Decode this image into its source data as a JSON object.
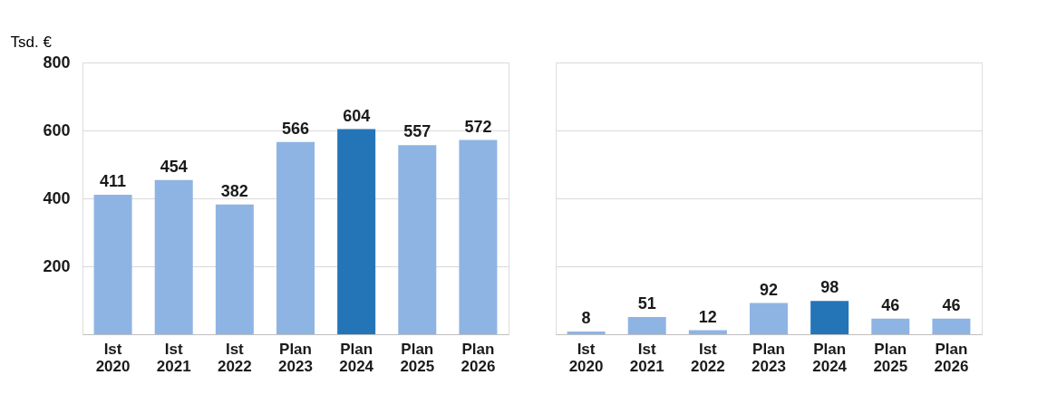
{
  "chart_data": [
    {
      "type": "bar",
      "ylabel": "Tsd. €",
      "categories": [
        "Ist 2020",
        "Ist 2021",
        "Ist 2022",
        "Plan 2023",
        "Plan 2024",
        "Plan 2025",
        "Plan 2026"
      ],
      "values": [
        411,
        454,
        382,
        566,
        604,
        557,
        572
      ],
      "colors": [
        "#8eb4e3",
        "#8eb4e3",
        "#8eb4e3",
        "#8eb4e3",
        "#2475b8",
        "#8eb4e3",
        "#8eb4e3"
      ],
      "ylim": [
        0,
        800
      ],
      "yticks": [
        {
          "value": 0,
          "label": null
        },
        200,
        400,
        600,
        800
      ],
      "grid": "y",
      "data_labels": true
    },
    {
      "type": "bar",
      "categories": [
        "Ist 2020",
        "Ist 2021",
        "Ist 2022",
        "Plan 2023",
        "Plan 2024",
        "Plan 2025",
        "Plan 2026"
      ],
      "values": [
        8,
        51,
        12,
        92,
        98,
        46,
        46
      ],
      "colors": [
        "#8eb4e3",
        "#8eb4e3",
        "#8eb4e3",
        "#8eb4e3",
        "#2475b8",
        "#8eb4e3",
        "#8eb4e3"
      ],
      "ylim": [
        0,
        800
      ],
      "yticks": [
        {
          "value": 0,
          "label": null
        },
        200,
        400,
        600,
        800
      ],
      "grid": "y",
      "data_labels": true,
      "tick_labels": "x"
    }
  ]
}
